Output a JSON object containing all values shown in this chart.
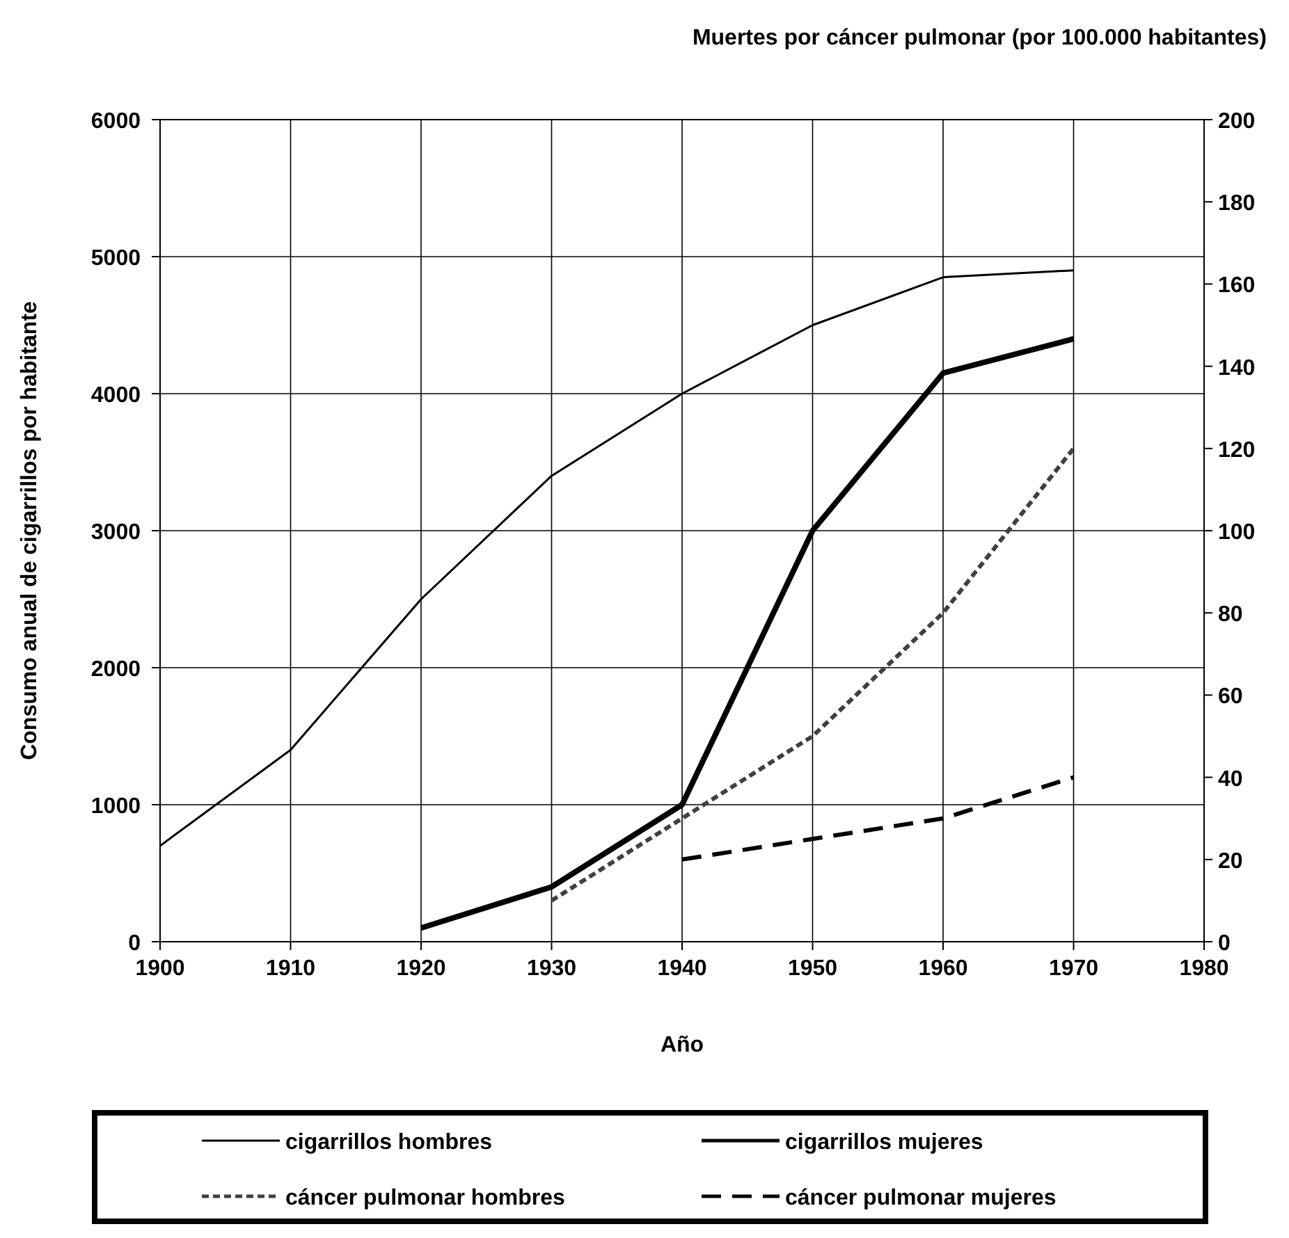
{
  "chart_data": {
    "type": "line",
    "xlabel": "Año",
    "ylabel": "Consumo anual de cigarrillos por habitante",
    "y2label": "Muertes por cáncer pulmonar (por 100.000 habitantes)",
    "xlim": [
      1900,
      1980
    ],
    "xticks": [
      1900,
      1910,
      1920,
      1930,
      1940,
      1950,
      1960,
      1970,
      1980
    ],
    "ylim": [
      0,
      6000
    ],
    "yticks": [
      0,
      1000,
      2000,
      3000,
      4000,
      5000,
      6000
    ],
    "y2lim": [
      0,
      200
    ],
    "y2ticks": [
      0,
      20,
      40,
      60,
      80,
      100,
      120,
      140,
      160,
      180,
      200
    ],
    "grid": true,
    "legend": "bottom",
    "series": [
      {
        "name": "cigarrillos hombres",
        "color": "#000000",
        "line_style": "solid",
        "x": [
          1900,
          1910,
          1920,
          1930,
          1940,
          1950,
          1960,
          1970
        ],
        "values": [
          700,
          1400,
          2500,
          3400,
          4000,
          4500,
          4850,
          4900
        ]
      },
      {
        "name": "cigarrillos mujeres",
        "color": "#000000",
        "line_style": "solid",
        "x": [
          1920,
          1930,
          1940,
          1950,
          1960,
          1970
        ],
        "values": [
          100,
          400,
          1000,
          3000,
          4150,
          4400
        ]
      },
      {
        "name": "cáncer pulmonar hombres",
        "color": "#404040",
        "line_style": "dotted",
        "axis": "y2",
        "x": [
          1930,
          1940,
          1950,
          1960,
          1970
        ],
        "values": [
          10,
          30,
          50,
          80,
          120
        ]
      },
      {
        "name": "cáncer pulmonar mujeres",
        "color": "#000000",
        "line_style": "dashed",
        "axis": "y2",
        "x": [
          1940,
          1950,
          1960,
          1970
        ],
        "values": [
          20,
          25,
          30,
          40
        ]
      }
    ]
  }
}
